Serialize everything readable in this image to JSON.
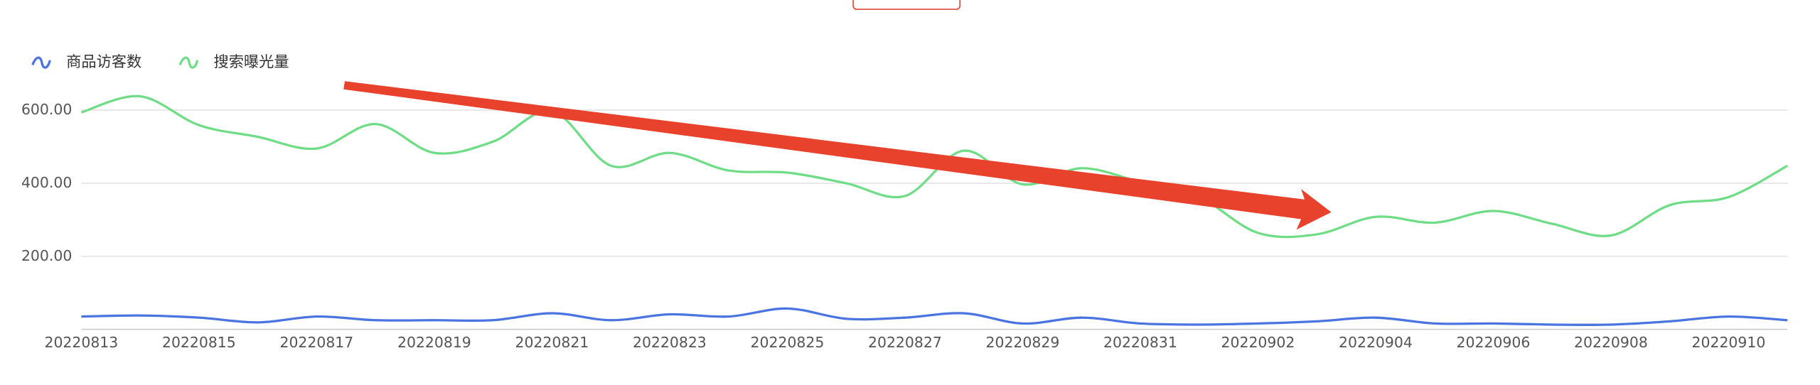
{
  "chart_data": {
    "type": "line",
    "categories": [
      "20220813",
      null,
      "20220815",
      null,
      "20220817",
      null,
      "20220819",
      null,
      "20220821",
      null,
      "20220823",
      null,
      "20220825",
      null,
      "20220827",
      null,
      "20220829",
      null,
      "20220831",
      null,
      "20220902",
      null,
      "20220904",
      null,
      "20220906",
      null,
      "20220908",
      null,
      "20220910",
      null
    ],
    "series": [
      {
        "name": "商品访客数",
        "color": "#4a74e0",
        "values": [
          35,
          38,
          32,
          19,
          35,
          25,
          25,
          25,
          44,
          25,
          41,
          35,
          57,
          29,
          32,
          44,
          16,
          32,
          16,
          13,
          16,
          22,
          32,
          16,
          16,
          13,
          13,
          22,
          35,
          25
        ]
      },
      {
        "name": "搜索曝光量",
        "color": "#6fdc86",
        "values": [
          594,
          638,
          559,
          527,
          495,
          562,
          483,
          514,
          597,
          448,
          483,
          435,
          429,
          400,
          365,
          489,
          397,
          441,
          403,
          362,
          264,
          260,
          308,
          292,
          324,
          289,
          257,
          340,
          362,
          448
        ]
      }
    ],
    "ylim": [
      0,
      800
    ],
    "yticks": [
      {
        "value": 200,
        "label": "200.00"
      },
      {
        "value": 400,
        "label": "400.00"
      },
      {
        "value": 600,
        "label": "600.00"
      }
    ],
    "grid": true
  }
}
